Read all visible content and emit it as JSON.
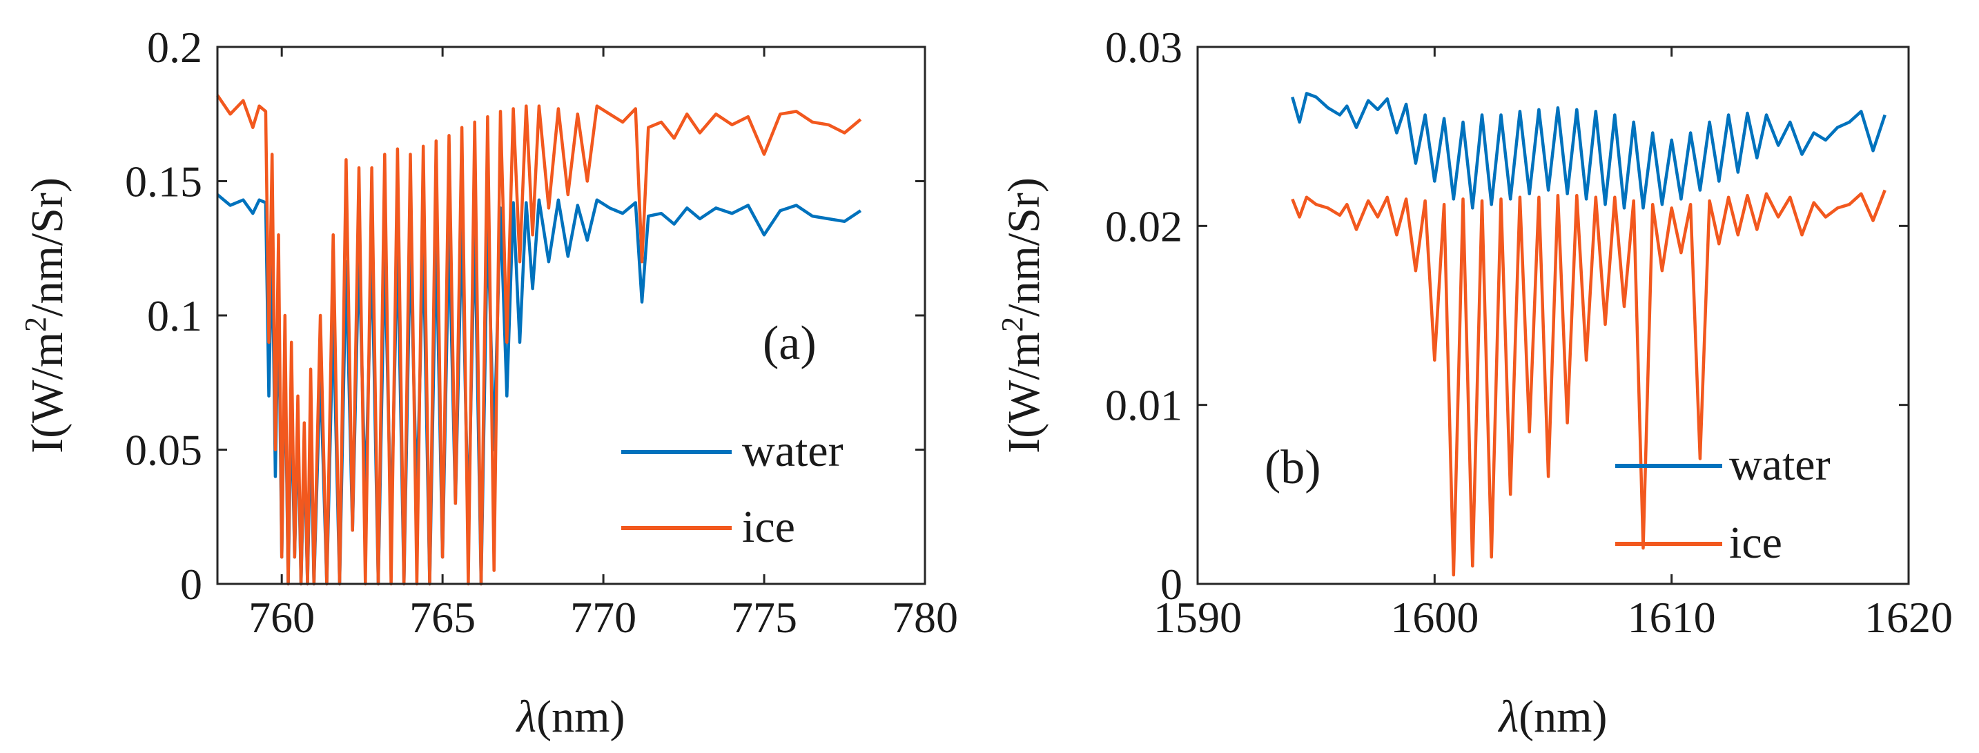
{
  "chart_data": [
    {
      "type": "line",
      "panel_label": "(a)",
      "xlabel_symbol": "λ",
      "xlabel_unit": "(nm)",
      "ylabel_prefix": "I(W/m",
      "ylabel_sup": "2",
      "ylabel_suffix": "/nm/Sr)",
      "xlim": [
        758,
        780
      ],
      "ylim": [
        0,
        0.2
      ],
      "xticks": [
        760,
        765,
        770,
        775,
        780
      ],
      "yticks": [
        0,
        0.05,
        0.1,
        0.15,
        0.2
      ],
      "xtick_labels": [
        "760",
        "765",
        "770",
        "775",
        "780"
      ],
      "ytick_labels": [
        "0",
        "0.05",
        "0.1",
        "0.15",
        "0.2"
      ],
      "legend_position": "bottom-right",
      "series": [
        {
          "name": "water",
          "color": "#0072BD",
          "x": [
            758.0,
            758.4,
            758.8,
            759.1,
            759.3,
            759.5,
            759.6,
            759.7,
            759.8,
            759.9,
            760.0,
            760.1,
            760.2,
            760.3,
            760.4,
            760.5,
            760.6,
            760.7,
            760.8,
            760.9,
            761.0,
            761.2,
            761.4,
            761.6,
            761.8,
            762.0,
            762.2,
            762.4,
            762.6,
            762.8,
            763.0,
            763.2,
            763.4,
            763.6,
            763.8,
            764.0,
            764.2,
            764.4,
            764.6,
            764.8,
            765.0,
            765.2,
            765.4,
            765.6,
            765.8,
            766.0,
            766.2,
            766.4,
            766.6,
            766.8,
            767.0,
            767.2,
            767.4,
            767.6,
            767.8,
            768.0,
            768.3,
            768.6,
            768.9,
            769.2,
            769.5,
            769.8,
            770.2,
            770.6,
            771.0,
            771.2,
            771.4,
            771.8,
            772.2,
            772.6,
            773.0,
            773.5,
            774.0,
            774.5,
            775.0,
            775.5,
            776.0,
            776.5,
            777.0,
            777.5,
            778.0
          ],
          "values": [
            0.145,
            0.141,
            0.143,
            0.138,
            0.143,
            0.142,
            0.07,
            0.13,
            0.04,
            0.11,
            0.01,
            0.09,
            0.0,
            0.07,
            0.01,
            0.06,
            0.0,
            0.05,
            0.0,
            0.06,
            0.0,
            0.08,
            0.0,
            0.1,
            0.0,
            0.12,
            0.02,
            0.125,
            0.03,
            0.125,
            0.0,
            0.125,
            0.02,
            0.128,
            0.0,
            0.128,
            0.03,
            0.128,
            0.0,
            0.13,
            0.01,
            0.132,
            0.03,
            0.134,
            0.02,
            0.135,
            0.0,
            0.136,
            0.05,
            0.14,
            0.07,
            0.142,
            0.09,
            0.142,
            0.11,
            0.143,
            0.12,
            0.143,
            0.122,
            0.141,
            0.128,
            0.143,
            0.14,
            0.138,
            0.142,
            0.105,
            0.137,
            0.138,
            0.134,
            0.14,
            0.136,
            0.14,
            0.138,
            0.141,
            0.13,
            0.139,
            0.141,
            0.137,
            0.136,
            0.135,
            0.139
          ]
        },
        {
          "name": "ice",
          "color": "#F2581E",
          "x": [
            758.0,
            758.4,
            758.8,
            759.1,
            759.3,
            759.5,
            759.6,
            759.7,
            759.8,
            759.9,
            760.0,
            760.1,
            760.2,
            760.3,
            760.4,
            760.5,
            760.6,
            760.7,
            760.8,
            760.9,
            761.0,
            761.2,
            761.4,
            761.6,
            761.8,
            762.0,
            762.2,
            762.4,
            762.6,
            762.8,
            763.0,
            763.2,
            763.4,
            763.6,
            763.8,
            764.0,
            764.2,
            764.4,
            764.6,
            764.8,
            765.0,
            765.2,
            765.4,
            765.6,
            765.8,
            766.0,
            766.2,
            766.4,
            766.6,
            766.8,
            767.0,
            767.2,
            767.4,
            767.6,
            767.8,
            768.0,
            768.3,
            768.6,
            768.9,
            769.2,
            769.5,
            769.8,
            770.2,
            770.6,
            771.0,
            771.2,
            771.4,
            771.8,
            772.2,
            772.6,
            773.0,
            773.5,
            774.0,
            774.5,
            775.0,
            775.5,
            776.0,
            776.5,
            777.0,
            777.5,
            778.0
          ],
          "values": [
            0.182,
            0.175,
            0.18,
            0.17,
            0.178,
            0.176,
            0.09,
            0.16,
            0.05,
            0.13,
            0.01,
            0.1,
            0.0,
            0.09,
            0.01,
            0.07,
            0.0,
            0.06,
            0.0,
            0.08,
            0.0,
            0.1,
            0.0,
            0.13,
            0.0,
            0.158,
            0.02,
            0.155,
            0.0,
            0.155,
            0.0,
            0.16,
            0.0,
            0.162,
            0.0,
            0.16,
            0.0,
            0.163,
            0.0,
            0.165,
            0.01,
            0.167,
            0.03,
            0.17,
            0.0,
            0.172,
            0.0,
            0.174,
            0.005,
            0.176,
            0.09,
            0.177,
            0.12,
            0.178,
            0.13,
            0.178,
            0.14,
            0.177,
            0.145,
            0.175,
            0.15,
            0.178,
            0.175,
            0.172,
            0.177,
            0.12,
            0.17,
            0.172,
            0.166,
            0.175,
            0.168,
            0.175,
            0.171,
            0.174,
            0.16,
            0.175,
            0.176,
            0.172,
            0.171,
            0.168,
            0.173
          ]
        }
      ]
    },
    {
      "type": "line",
      "panel_label": "(b)",
      "xlabel_symbol": "λ",
      "xlabel_unit": "(nm)",
      "ylabel_prefix": "I(W/m",
      "ylabel_sup": "2",
      "ylabel_suffix": "/nm/Sr)",
      "xlim": [
        1590,
        1620
      ],
      "ylim": [
        0,
        0.03
      ],
      "xticks": [
        1590,
        1600,
        1610,
        1620
      ],
      "yticks": [
        0,
        0.01,
        0.02,
        0.03
      ],
      "xtick_labels": [
        "1590",
        "1600",
        "1610",
        "1620"
      ],
      "ytick_labels": [
        "0",
        "0.01",
        "0.02",
        "0.03"
      ],
      "legend_position": "bottom-right",
      "series": [
        {
          "name": "water",
          "color": "#0072BD",
          "x": [
            1594.0,
            1594.3,
            1594.6,
            1595.0,
            1595.5,
            1596.0,
            1596.3,
            1596.7,
            1597.2,
            1597.6,
            1598.0,
            1598.4,
            1598.8,
            1599.2,
            1599.6,
            1600.0,
            1600.4,
            1600.8,
            1601.2,
            1601.6,
            1602.0,
            1602.4,
            1602.8,
            1603.2,
            1603.6,
            1604.0,
            1604.4,
            1604.8,
            1605.2,
            1605.6,
            1606.0,
            1606.4,
            1606.8,
            1607.2,
            1607.6,
            1608.0,
            1608.4,
            1608.8,
            1609.2,
            1609.6,
            1610.0,
            1610.4,
            1610.8,
            1611.2,
            1611.6,
            1612.0,
            1612.4,
            1612.8,
            1613.2,
            1613.6,
            1614.0,
            1614.5,
            1615.0,
            1615.5,
            1616.0,
            1616.5,
            1617.0,
            1617.5,
            1618.0,
            1618.5,
            1619.0
          ],
          "values": [
            0.0272,
            0.0258,
            0.0274,
            0.0272,
            0.0266,
            0.0262,
            0.0267,
            0.0255,
            0.027,
            0.0265,
            0.0271,
            0.0252,
            0.0268,
            0.0235,
            0.0262,
            0.0225,
            0.026,
            0.0215,
            0.0258,
            0.021,
            0.0262,
            0.0212,
            0.0262,
            0.0215,
            0.0264,
            0.0218,
            0.0265,
            0.022,
            0.0266,
            0.0218,
            0.0265,
            0.0215,
            0.0264,
            0.0212,
            0.0262,
            0.021,
            0.0258,
            0.021,
            0.0252,
            0.0212,
            0.0248,
            0.0215,
            0.0252,
            0.022,
            0.0258,
            0.0225,
            0.0262,
            0.023,
            0.0263,
            0.0238,
            0.0262,
            0.0245,
            0.0258,
            0.024,
            0.0252,
            0.0248,
            0.0255,
            0.0258,
            0.0264,
            0.0242,
            0.0262
          ]
        },
        {
          "name": "ice",
          "color": "#F2581E",
          "x": [
            1594.0,
            1594.3,
            1594.6,
            1595.0,
            1595.5,
            1596.0,
            1596.3,
            1596.7,
            1597.2,
            1597.6,
            1598.0,
            1598.4,
            1598.8,
            1599.2,
            1599.6,
            1600.0,
            1600.4,
            1600.8,
            1601.2,
            1601.6,
            1602.0,
            1602.4,
            1602.8,
            1603.2,
            1603.6,
            1604.0,
            1604.4,
            1604.8,
            1605.2,
            1605.6,
            1606.0,
            1606.4,
            1606.8,
            1607.2,
            1607.6,
            1608.0,
            1608.4,
            1608.8,
            1609.2,
            1609.6,
            1610.0,
            1610.4,
            1610.8,
            1611.2,
            1611.6,
            1612.0,
            1612.4,
            1612.8,
            1613.2,
            1613.6,
            1614.0,
            1614.5,
            1615.0,
            1615.5,
            1616.0,
            1616.5,
            1617.0,
            1617.5,
            1618.0,
            1618.5,
            1619.0
          ],
          "values": [
            0.0215,
            0.0205,
            0.0216,
            0.0212,
            0.021,
            0.0206,
            0.0212,
            0.0198,
            0.0214,
            0.0205,
            0.0216,
            0.0195,
            0.0215,
            0.0175,
            0.0214,
            0.0125,
            0.0212,
            0.0005,
            0.0215,
            0.001,
            0.0214,
            0.0015,
            0.0215,
            0.005,
            0.0216,
            0.0085,
            0.0216,
            0.006,
            0.0217,
            0.009,
            0.0217,
            0.0125,
            0.0216,
            0.0145,
            0.0216,
            0.0155,
            0.0214,
            0.002,
            0.0212,
            0.0175,
            0.021,
            0.0185,
            0.0212,
            0.007,
            0.0214,
            0.019,
            0.0216,
            0.0195,
            0.0217,
            0.0198,
            0.0218,
            0.0205,
            0.0216,
            0.0195,
            0.0213,
            0.0205,
            0.021,
            0.0212,
            0.0218,
            0.0203,
            0.022
          ]
        }
      ]
    }
  ]
}
